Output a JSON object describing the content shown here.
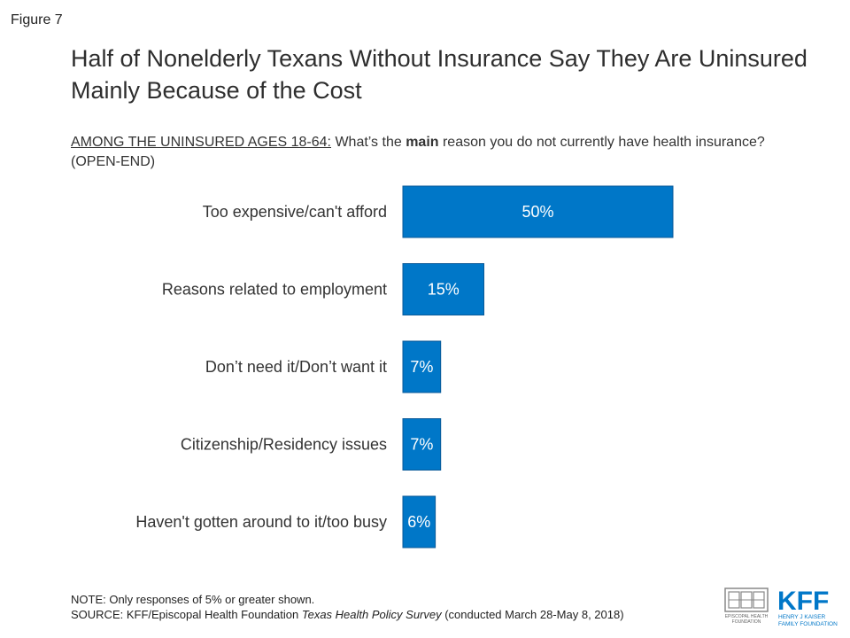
{
  "figure_label": "Figure 7",
  "title": "Half of Nonelderly Texans Without Insurance Say They Are Uninsured Mainly Because of the Cost",
  "question": {
    "prefix": "AMONG THE UNINSURED AGES 18-64:",
    "part1": " What’s the ",
    "emphasis": "main",
    "part2": " reason you do not currently have health insurance? (OPEN-END)"
  },
  "chart_data": {
    "type": "bar",
    "orientation": "horizontal",
    "categories": [
      "Too expensive/can't afford",
      "Reasons related to employment",
      "Don’t need it/Don’t want it",
      "Citizenship/Residency issues",
      "Haven't gotten around to it/too busy"
    ],
    "values": [
      50,
      15,
      7,
      7,
      6
    ],
    "data_labels": [
      "50%",
      "15%",
      "7%",
      "7%",
      "6%"
    ],
    "unit": "%",
    "bar_color": "#0077C8",
    "xlim": [
      0,
      100
    ],
    "grid": false,
    "legend": "none"
  },
  "note": {
    "line1": "NOTE: Only responses of 5% or greater shown.",
    "source_prefix": "SOURCE: KFF/Episcopal Health Foundation ",
    "source_italic": "Texas Health Policy Survey",
    "source_suffix": " (conducted March 28-May 8, 2018)"
  },
  "logos": {
    "ehf_text_line1": "EPISCOPAL HEALTH",
    "ehf_text_line2": "FOUNDATION",
    "kff_mark": "KFF",
    "kff_line1": "HENRY J KAISER",
    "kff_line2": "FAMILY FOUNDATION",
    "kff_color": "#0077C8"
  }
}
